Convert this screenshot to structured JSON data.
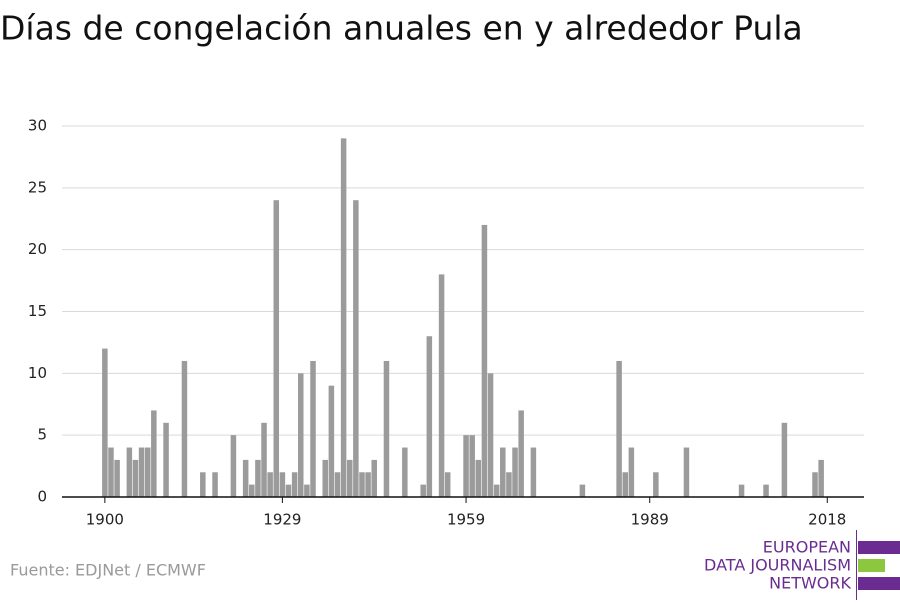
{
  "chart_data": {
    "type": "bar",
    "title": "Días de congelación anuales en y alrededor Pula",
    "source": "Fuente: EDJNet / ECMWF",
    "logo": [
      "EUROPEAN",
      "DATA JOURNALISM",
      "NETWORK"
    ],
    "x": [
      1900,
      1901,
      1902,
      1904,
      1905,
      1906,
      1907,
      1908,
      1910,
      1913,
      1916,
      1918,
      1921,
      1923,
      1924,
      1925,
      1926,
      1927,
      1928,
      1929,
      1930,
      1931,
      1932,
      1933,
      1934,
      1936,
      1937,
      1938,
      1939,
      1940,
      1941,
      1942,
      1943,
      1944,
      1946,
      1949,
      1952,
      1953,
      1955,
      1956,
      1959,
      1960,
      1961,
      1962,
      1963,
      1964,
      1965,
      1966,
      1967,
      1968,
      1970,
      1978,
      1984,
      1985,
      1986,
      1990,
      1995,
      2004,
      2008,
      2011,
      2016,
      2017
    ],
    "values": [
      12,
      4,
      3,
      4,
      3,
      4,
      4,
      7,
      6,
      11,
      2,
      2,
      5,
      3,
      1,
      3,
      6,
      2,
      24,
      2,
      1,
      2,
      10,
      1,
      11,
      3,
      9,
      2,
      29,
      3,
      24,
      2,
      2,
      3,
      11,
      4,
      1,
      13,
      18,
      2,
      5,
      5,
      3,
      22,
      10,
      1,
      4,
      2,
      4,
      7,
      4,
      1,
      11,
      2,
      4,
      2,
      4,
      1,
      1,
      6,
      2,
      3
    ],
    "color": "#9b9b9b",
    "xlim": [
      1893,
      2024
    ],
    "xticks": [
      1900,
      1929,
      1959,
      1989,
      2018
    ],
    "ylim": [
      0,
      30
    ],
    "yticks": [
      0,
      5,
      10,
      15,
      20,
      25,
      30
    ],
    "grid": true
  }
}
